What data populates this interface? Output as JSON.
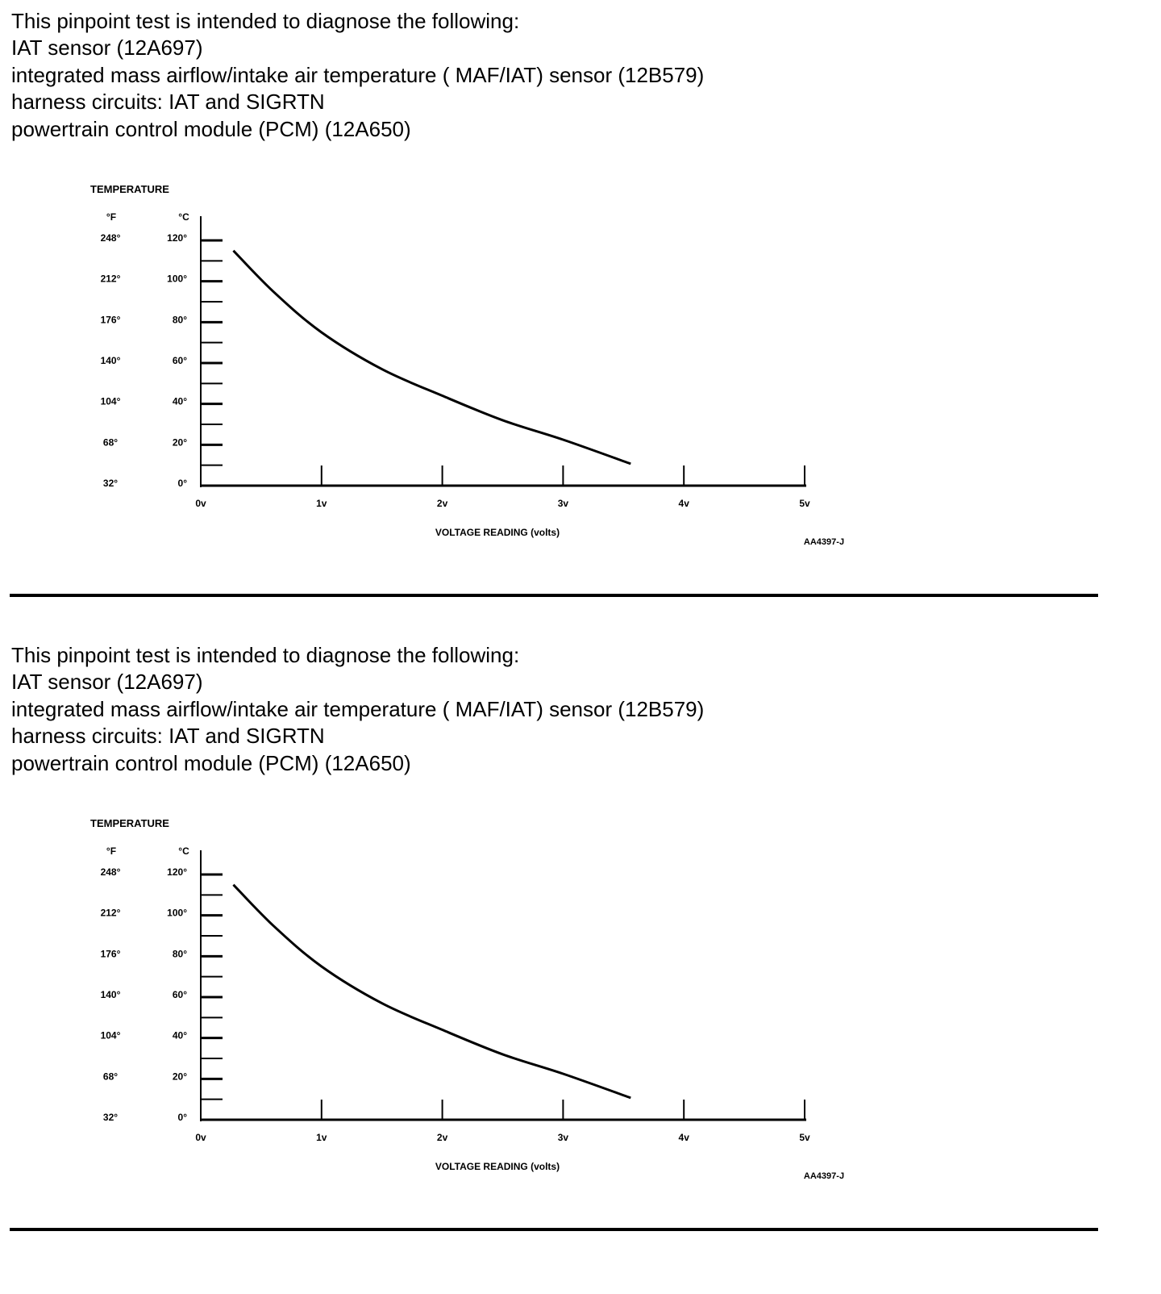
{
  "blocks": [
    {
      "lines": [
        "This pinpoint test is intended to diagnose the following:",
        "IAT sensor (12A697)",
        "integrated mass airflow/intake air temperature ( MAF/IAT) sensor (12B579)",
        "harness circuits: IAT and SIGRTN",
        "powertrain control module (PCM) (12A650)"
      ]
    },
    {
      "lines": [
        "This pinpoint test is intended to diagnose the following:",
        "IAT sensor (12A697)",
        "integrated mass airflow/intake air temperature ( MAF/IAT) sensor (12B579)",
        "harness circuits: IAT and SIGRTN",
        "powertrain control module (PCM) (12A650)"
      ]
    }
  ],
  "chart_data": [
    {
      "type": "line",
      "title": "TEMPERATURE",
      "xlabel": "VOLTAGE READING (volts)",
      "figure_id": "AA4397-J",
      "y_unit_f": "°F",
      "y_unit_c": "°C",
      "xlim": [
        0,
        5
      ],
      "ylim": [
        0,
        120
      ],
      "x_ticks": [
        "0v",
        "1v",
        "2v",
        "3v",
        "4v",
        "5v"
      ],
      "y_ticks_c": [
        "0°",
        "20°",
        "40°",
        "60°",
        "80°",
        "100°",
        "120°"
      ],
      "y_ticks_f": [
        "32°",
        "68°",
        "104°",
        "140°",
        "176°",
        "212°",
        "248°"
      ],
      "grid": false,
      "series": [
        {
          "x": [
            0.27,
            0.6,
            1.0,
            1.5,
            2.0,
            2.5,
            3.0,
            3.56
          ],
          "y": [
            115,
            95,
            75,
            57,
            44,
            32,
            22.5,
            10.7
          ]
        }
      ]
    },
    {
      "type": "line",
      "title": "TEMPERATURE",
      "xlabel": "VOLTAGE READING (volts)",
      "figure_id": "AA4397-J",
      "y_unit_f": "°F",
      "y_unit_c": "°C",
      "xlim": [
        0,
        5
      ],
      "ylim": [
        0,
        120
      ],
      "x_ticks": [
        "0v",
        "1v",
        "2v",
        "3v",
        "4v",
        "5v"
      ],
      "y_ticks_c": [
        "0°",
        "20°",
        "40°",
        "60°",
        "80°",
        "100°",
        "120°"
      ],
      "y_ticks_f": [
        "32°",
        "68°",
        "104°",
        "140°",
        "176°",
        "212°",
        "248°"
      ],
      "grid": false,
      "series": [
        {
          "x": [
            0.27,
            0.6,
            1.0,
            1.5,
            2.0,
            2.5,
            3.0,
            3.56
          ],
          "y": [
            115,
            95,
            75,
            57,
            44,
            32,
            22.5,
            10.7
          ]
        }
      ]
    }
  ]
}
